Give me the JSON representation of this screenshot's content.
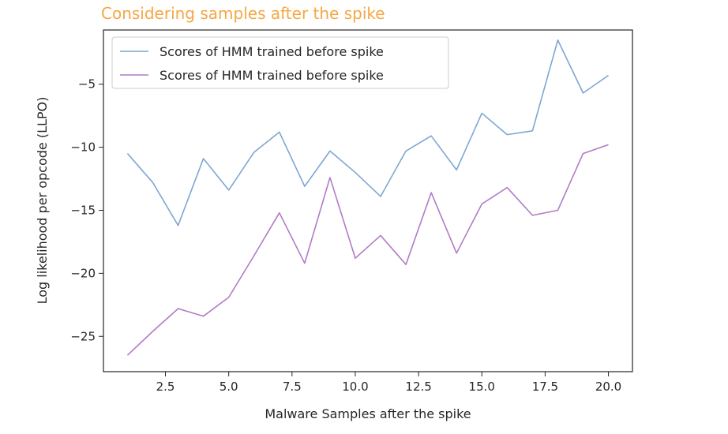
{
  "chart_data": {
    "type": "line",
    "title": "Considering samples after the spike",
    "title_color": "#f5a742",
    "xlabel": "Malware Samples after the spike",
    "ylabel": "Log likelihood per opcode (LLPO)",
    "xlim": [
      0.05,
      20.95
    ],
    "ylim": [
      -27.8,
      -0.7
    ],
    "xticks": [
      2.5,
      5.0,
      7.5,
      10.0,
      12.5,
      15.0,
      17.5,
      20.0
    ],
    "xtick_labels": [
      "2.5",
      "5.0",
      "7.5",
      "10.0",
      "12.5",
      "15.0",
      "17.5",
      "20.0"
    ],
    "yticks": [
      -25,
      -20,
      -15,
      -10,
      -5
    ],
    "ytick_labels": [
      "−25",
      "−20",
      "−15",
      "−10",
      "−5"
    ],
    "grid": false,
    "legend_position": "top-left",
    "x": [
      1,
      2,
      3,
      4,
      5,
      6,
      7,
      8,
      9,
      10,
      11,
      12,
      13,
      14,
      15,
      16,
      17,
      18,
      19,
      20
    ],
    "series": [
      {
        "name": "Scores of HMM trained before spike",
        "color": "#7ea6d4",
        "values": [
          -10.5,
          -12.8,
          -16.2,
          -10.9,
          -13.4,
          -10.4,
          -8.8,
          -13.1,
          -10.3,
          -12.0,
          -13.9,
          -10.3,
          -9.1,
          -11.8,
          -7.3,
          -9.0,
          -8.7,
          -1.5,
          -5.7,
          -4.3
        ]
      },
      {
        "name": "Scores of HMM trained before spike",
        "color": "#b07cc6",
        "values": [
          -26.5,
          -24.6,
          -22.8,
          -23.4,
          -21.9,
          -18.6,
          -15.2,
          -19.2,
          -12.4,
          -18.8,
          -17.0,
          -19.3,
          -13.6,
          -18.4,
          -14.5,
          -13.2,
          -15.4,
          -15.0,
          -10.5,
          -9.8
        ]
      }
    ]
  }
}
